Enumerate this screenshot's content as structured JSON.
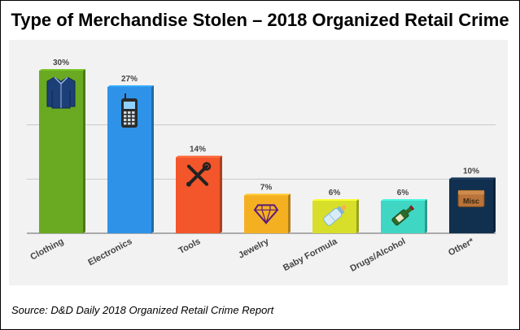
{
  "header": {
    "title": "Type of Merchandise Stolen – 2018 Organized Retail Crime"
  },
  "footer": {
    "source": "Source: D&D Daily 2018 Organized Retail Crime Report"
  },
  "chart_data": {
    "type": "bar",
    "title": "Type of Merchandise Stolen – 2018 Organized Retail Crime",
    "xlabel": "",
    "ylabel": "",
    "categories": [
      "Clothing",
      "Electronics",
      "Tools",
      "Jewelry",
      "Baby Formula",
      "Drugs/Alcohol",
      "Other*"
    ],
    "values": [
      30,
      27,
      14,
      7,
      6,
      6,
      10
    ],
    "value_labels": [
      "30%",
      "27%",
      "14%",
      "7%",
      "6%",
      "6%",
      "10%"
    ],
    "colors": [
      "#6aaa22",
      "#2e93e8",
      "#f2562a",
      "#f5b022",
      "#d8df2a",
      "#3fd6c4",
      "#11304f"
    ],
    "icons": [
      "shirt-icon",
      "phone-icon",
      "tools-icon",
      "diamond-icon",
      "baby-bottle-icon",
      "bottle-pills-icon",
      "misc-box-icon"
    ],
    "icon_text": {
      "misc": "Misc"
    },
    "ylim": [
      0,
      30
    ],
    "grid": true,
    "legend": "none",
    "bar_style": "3d"
  }
}
